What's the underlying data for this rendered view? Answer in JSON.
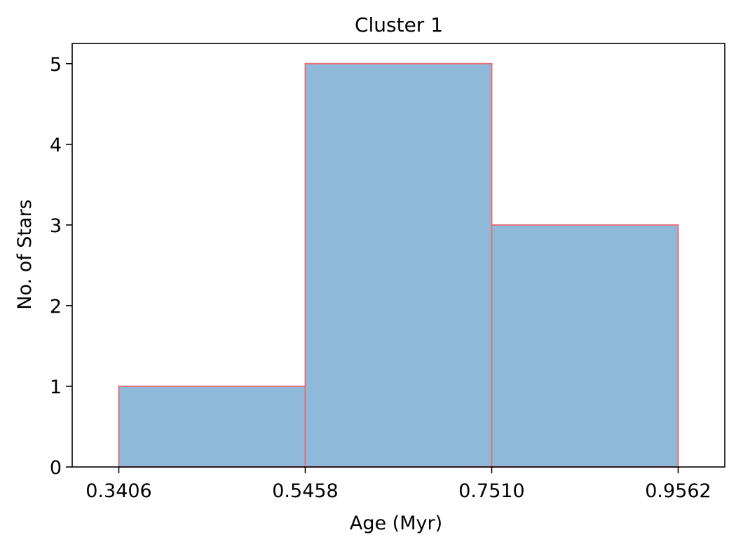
{
  "chart_data": {
    "type": "bar",
    "subtype": "histogram",
    "title": "Cluster 1",
    "xlabel": "Age (Myr)",
    "ylabel": "No. of Stars",
    "bin_edges": [
      0.3406,
      0.5458,
      0.751,
      0.9562
    ],
    "counts": [
      1,
      5,
      3
    ],
    "x_ticks": [
      "0.3406",
      "0.5458",
      "0.7510",
      "0.9562"
    ],
    "y_ticks": [
      0,
      1,
      2,
      3,
      4,
      5
    ],
    "xlim": [
      0.2893,
      1.0075
    ],
    "ylim": [
      0,
      5.25
    ],
    "grid": false,
    "bar_fill_color": "#8fb9d8",
    "bar_edge_color": "#e87076"
  }
}
